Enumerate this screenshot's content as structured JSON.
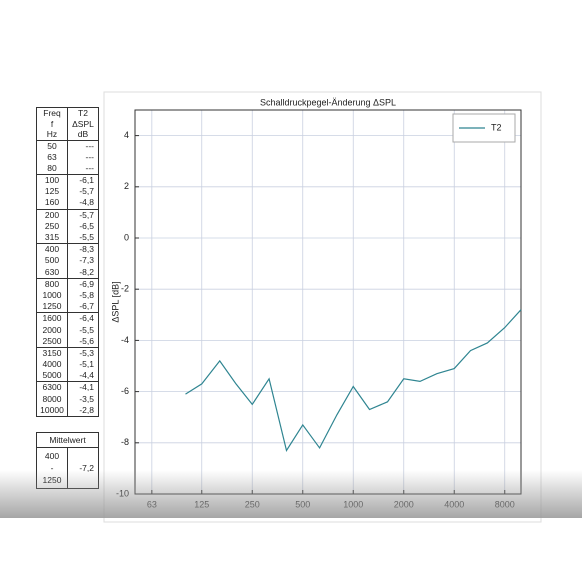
{
  "chart_data": {
    "type": "line",
    "title": "Schalldruckpegel-Änderung ΔSPL",
    "y_label": "ΔSPL [dB]",
    "x": [
      100,
      125,
      160,
      200,
      250,
      315,
      400,
      500,
      630,
      800,
      1000,
      1250,
      1600,
      2000,
      2500,
      3150,
      4000,
      5000,
      6300,
      8000,
      10000
    ],
    "series": [
      {
        "name": "T2",
        "color": "#2f8591",
        "values": [
          -6.1,
          -5.7,
          -4.8,
          -5.7,
          -6.5,
          -5.5,
          -8.3,
          -7.3,
          -8.2,
          -6.9,
          -5.8,
          -6.7,
          -6.4,
          -5.5,
          -5.6,
          -5.3,
          -5.1,
          -4.4,
          -4.1,
          -3.5,
          -2.8
        ]
      }
    ],
    "xlim": [
      50,
      10000
    ],
    "xscale": "log",
    "xticks": [
      63,
      125,
      250,
      500,
      1000,
      2000,
      4000,
      8000
    ],
    "ylim": [
      -10,
      5
    ],
    "yticks": [
      -10,
      -8,
      -6,
      -4,
      -2,
      0,
      2,
      4
    ],
    "grid": true,
    "legend": "upper-right"
  },
  "table": {
    "header": [
      [
        "Freq",
        "f",
        "Hz"
      ],
      [
        "T2",
        "ΔSPL",
        "dB"
      ]
    ],
    "rows": [
      [
        "50",
        "---"
      ],
      [
        "63",
        "---"
      ],
      [
        "80",
        "---"
      ],
      [
        "100",
        "-6,1"
      ],
      [
        "125",
        "-5,7"
      ],
      [
        "160",
        "-4,8"
      ],
      [
        "200",
        "-5,7"
      ],
      [
        "250",
        "-6,5"
      ],
      [
        "315",
        "-5,5"
      ],
      [
        "400",
        "-8,3"
      ],
      [
        "500",
        "-7,3"
      ],
      [
        "630",
        "-8,2"
      ],
      [
        "800",
        "-6,9"
      ],
      [
        "1000",
        "-5,8"
      ],
      [
        "1250",
        "-6,7"
      ],
      [
        "1600",
        "-6,4"
      ],
      [
        "2000",
        "-5,5"
      ],
      [
        "2500",
        "-5,6"
      ],
      [
        "3150",
        "-5,3"
      ],
      [
        "4000",
        "-5,1"
      ],
      [
        "5000",
        "-4,4"
      ],
      [
        "6300",
        "-4,1"
      ],
      [
        "8000",
        "-3,5"
      ],
      [
        "10000",
        "-2,8"
      ]
    ]
  },
  "mean": {
    "label": "Mittelwert",
    "range": [
      "400",
      "-",
      "1250"
    ],
    "value": "-7,2"
  }
}
